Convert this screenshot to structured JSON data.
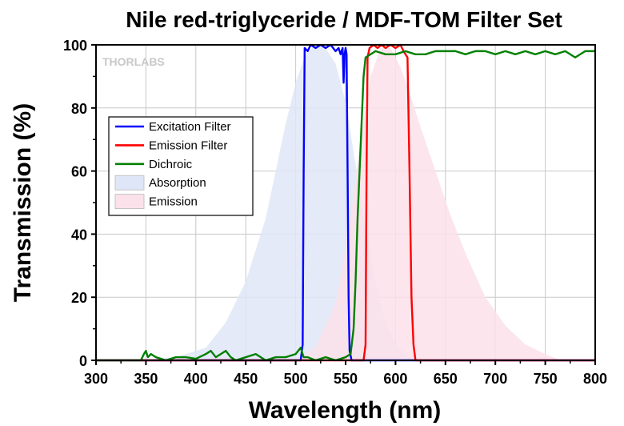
{
  "chart_data": {
    "type": "line",
    "title": "Nile red-triglyceride / MDF-TOM Filter Set",
    "xlabel": "Wavelength (nm)",
    "ylabel": "Transmission (%)",
    "xlim": [
      300,
      800
    ],
    "ylim": [
      0,
      100
    ],
    "x_ticks": [
      300,
      350,
      400,
      450,
      500,
      550,
      600,
      650,
      700,
      750,
      800
    ],
    "y_ticks": [
      0,
      20,
      40,
      60,
      80,
      100
    ],
    "grid": true,
    "legend_position": "upper-left",
    "brand": "THORLABS",
    "series": [
      {
        "name": "Excitation Filter",
        "kind": "line",
        "color": "#0000ff",
        "points": [
          [
            300,
            0
          ],
          [
            505,
            0
          ],
          [
            507,
            5
          ],
          [
            508,
            60
          ],
          [
            509,
            99
          ],
          [
            512,
            98
          ],
          [
            515,
            100
          ],
          [
            520,
            99
          ],
          [
            525,
            100
          ],
          [
            530,
            99
          ],
          [
            535,
            100
          ],
          [
            540,
            98
          ],
          [
            543,
            99
          ],
          [
            545,
            97
          ],
          [
            547,
            99
          ],
          [
            548,
            88
          ],
          [
            549,
            97
          ],
          [
            550,
            99
          ],
          [
            551,
            97
          ],
          [
            552,
            60
          ],
          [
            553,
            20
          ],
          [
            554,
            3
          ],
          [
            556,
            0
          ],
          [
            800,
            0
          ]
        ]
      },
      {
        "name": "Emission Filter",
        "kind": "line",
        "color": "#ff0000",
        "points": [
          [
            300,
            0
          ],
          [
            568,
            0
          ],
          [
            570,
            5
          ],
          [
            571,
            60
          ],
          [
            572,
            96
          ],
          [
            574,
            99
          ],
          [
            578,
            100
          ],
          [
            582,
            99
          ],
          [
            586,
            100
          ],
          [
            590,
            99
          ],
          [
            595,
            100
          ],
          [
            600,
            99
          ],
          [
            605,
            100
          ],
          [
            608,
            98
          ],
          [
            610,
            97
          ],
          [
            612,
            96
          ],
          [
            614,
            60
          ],
          [
            616,
            20
          ],
          [
            618,
            5
          ],
          [
            620,
            0
          ],
          [
            800,
            0
          ]
        ]
      },
      {
        "name": "Dichroic",
        "kind": "line",
        "color": "#008000",
        "points": [
          [
            300,
            0
          ],
          [
            345,
            0
          ],
          [
            348,
            2
          ],
          [
            350,
            3
          ],
          [
            352,
            1
          ],
          [
            355,
            2
          ],
          [
            360,
            1
          ],
          [
            370,
            0
          ],
          [
            380,
            1
          ],
          [
            390,
            1
          ],
          [
            400,
            0.5
          ],
          [
            410,
            2
          ],
          [
            415,
            3
          ],
          [
            420,
            1
          ],
          [
            425,
            2
          ],
          [
            430,
            3
          ],
          [
            435,
            1
          ],
          [
            440,
            0
          ],
          [
            450,
            1
          ],
          [
            460,
            2
          ],
          [
            470,
            0
          ],
          [
            480,
            1
          ],
          [
            490,
            1
          ],
          [
            500,
            2
          ],
          [
            505,
            4
          ],
          [
            508,
            1
          ],
          [
            512,
            1
          ],
          [
            520,
            0
          ],
          [
            530,
            1
          ],
          [
            540,
            0
          ],
          [
            550,
            1
          ],
          [
            555,
            2
          ],
          [
            558,
            10
          ],
          [
            560,
            25
          ],
          [
            562,
            45
          ],
          [
            564,
            60
          ],
          [
            566,
            75
          ],
          [
            568,
            90
          ],
          [
            570,
            96
          ],
          [
            575,
            97
          ],
          [
            580,
            98
          ],
          [
            590,
            97
          ],
          [
            600,
            97
          ],
          [
            610,
            98
          ],
          [
            620,
            97
          ],
          [
            630,
            97
          ],
          [
            640,
            98
          ],
          [
            650,
            98
          ],
          [
            660,
            98
          ],
          [
            670,
            97
          ],
          [
            680,
            98
          ],
          [
            690,
            98
          ],
          [
            700,
            97
          ],
          [
            710,
            98
          ],
          [
            720,
            97
          ],
          [
            730,
            98
          ],
          [
            740,
            97
          ],
          [
            750,
            98
          ],
          [
            760,
            97
          ],
          [
            770,
            98
          ],
          [
            780,
            96
          ],
          [
            790,
            98
          ],
          [
            800,
            98
          ]
        ]
      },
      {
        "name": "Absorption",
        "kind": "area",
        "color": "#dfe6f7",
        "points": [
          [
            345,
            0
          ],
          [
            380,
            1
          ],
          [
            410,
            4
          ],
          [
            430,
            12
          ],
          [
            450,
            25
          ],
          [
            470,
            45
          ],
          [
            480,
            60
          ],
          [
            490,
            75
          ],
          [
            500,
            88
          ],
          [
            510,
            97
          ],
          [
            520,
            100
          ],
          [
            530,
            99
          ],
          [
            540,
            94
          ],
          [
            550,
            82
          ],
          [
            560,
            62
          ],
          [
            570,
            42
          ],
          [
            580,
            25
          ],
          [
            590,
            12
          ],
          [
            600,
            5
          ],
          [
            610,
            2
          ],
          [
            620,
            0
          ]
        ]
      },
      {
        "name": "Emission",
        "kind": "area",
        "color": "#fbe1ea",
        "points": [
          [
            500,
            0
          ],
          [
            520,
            4
          ],
          [
            540,
            18
          ],
          [
            555,
            45
          ],
          [
            565,
            70
          ],
          [
            575,
            90
          ],
          [
            585,
            99
          ],
          [
            595,
            99
          ],
          [
            605,
            93
          ],
          [
            615,
            84
          ],
          [
            625,
            74
          ],
          [
            640,
            60
          ],
          [
            655,
            46
          ],
          [
            670,
            34
          ],
          [
            690,
            20
          ],
          [
            710,
            11
          ],
          [
            730,
            5
          ],
          [
            750,
            2
          ],
          [
            765,
            0
          ]
        ]
      }
    ]
  }
}
